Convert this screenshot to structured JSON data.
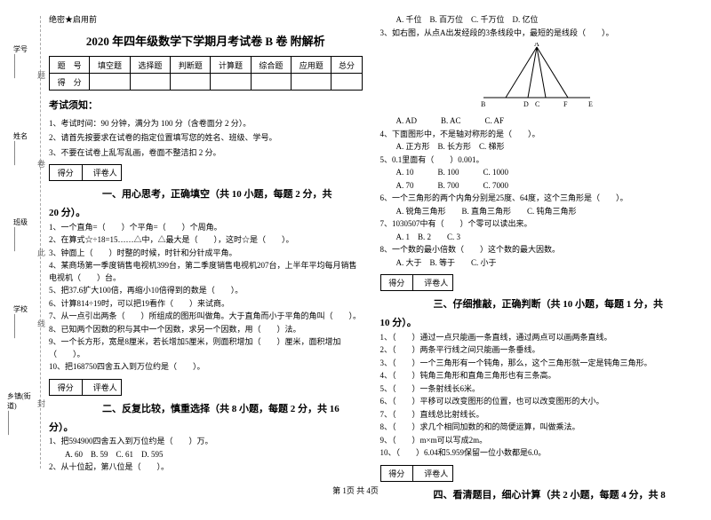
{
  "confidential": "绝密★启用前",
  "title": "2020 年四年级数学下学期月考试卷 B 卷 附解析",
  "scoreTable": {
    "header": [
      "题　号",
      "填空题",
      "选择题",
      "判断题",
      "计算题",
      "综合题",
      "应用题",
      "总分"
    ],
    "row": [
      "得　分",
      "",
      "",
      "",
      "",
      "",
      "",
      ""
    ]
  },
  "noticeTitle": "考试须知：",
  "notices": [
    "1、考试时间：90 分钟，满分为 100 分（含卷面分 2 分）。",
    "2、请首先按要求在试卷的指定位置填写您的姓名、班级、学号。",
    "3、不要在试卷上乱写乱画，卷面不整洁扣 2 分。"
  ],
  "scoreboxLabels": [
    "得分",
    "评卷人"
  ],
  "sec1": "一、用心思考，正确填空（共 10 小题，每题 2 分，共",
  "sec1b": "20 分）。",
  "q1": [
    "1、一个直角=（　　）个平角=（　　）个周角。",
    "2、在算式☆÷18=15……△中，△最大是（　　），这时☆是（　　）。",
    "3、钟面上（　　）时整的时候，时针和分针成平角。",
    "4、某商场第一季度销售电视机399台，第二季度销售电视机207台，上半年平均每月销售电视机（　　）台。",
    "5、把37.6扩大100倍，再缩小10倍得到的数是（　　）。",
    "6、计算814÷19时，可以把19看作（　　）来试商。",
    "7、从一点引出两条（　　）所组成的图形叫做角。大于直角而小于平角的角叫（　　）。",
    "8、已知两个因数的积与其中一个因数，求另一个因数，用（　　）法。",
    "9、一个长方形，宽是8厘米，若长增加5厘米，则面积增加（　　）厘米，面积增加（　　）。",
    "10、把168750四舍五入到万位约是（　　）。"
  ],
  "sec2": "二、反复比较，慎重选择（共 8 小题，每题 2 分，共 16",
  "sec2b": "分）。",
  "q2": [
    "1、把594900四舍五入到万位约是（　　）万。",
    "　　A. 60　B. 59　C. 61　D. 595",
    "2、从十位起，第八位是（　　）。"
  ],
  "q2r": [
    "　　A. 千位　B. 百万位　C. 千万位　D. 亿位",
    "3、如右图，从点A出发经段的3条线段中，最短的是线段（　　）。"
  ],
  "svgLabels": [
    "A",
    "B",
    "D",
    "C",
    "F",
    "E"
  ],
  "q3r": [
    "　　A. AD　　　B. AC　　　C. AF",
    "4、下面图形中，不是轴对称形的是（　　）。",
    "　　A. 正方形　B. 长方形　C. 梯形",
    "5、0.1里面有（　　）0.001。",
    "　　A. 10　　　B. 100　　　C. 1000",
    "　　A. 70　　　B. 700　　　C. 7000",
    "6、一个三角形的两个内角分别是25度、64度，这个三角形是（　　）。",
    "　　A. 锐角三角形　　B. 直角三角形　　C. 钝角三角形",
    "7、1030507中有（　　）个零可以读出来。",
    "　　A. 1　B. 2　　C. 3",
    "8、一个数的最小倍数（　　）这个数的最大因数。",
    "　　A. 大于　B. 等于　　C. 小于"
  ],
  "sec3": "三、仔细推敲，正确判断（共 10 小题，每题 1 分，共",
  "sec3b": "10 分）。",
  "q4": [
    "1、（　　）通过一点只能画一条直线，通过两点可以画两条直线。",
    "2、（　　）两条平行线之间只能画一条垂线。",
    "3、（　　）一个三角形有一个钝角，那么，这个三角形就一定是钝角三角形。",
    "4、（　　）钝角三角形和直角三角形也有三条高。",
    "5、（　　）一条射线长6米。",
    "6、（　　）平移可以改变图形的位置，也可以改变图形的大小。",
    "7、（　　）直线总比射线长。",
    "8、（　　）求几个相同加数的和的简便运算，叫做乘法。",
    "9、（　　）m×m可以写成2m。",
    "10、（　　）6.04和5.959保留一位小数都是6.0。"
  ],
  "sec4": "四、看清题目，细心计算（共 2 小题，每题 4 分，共 8",
  "side": {
    "l1": "乡镇(街道)",
    "b1": "封",
    "l2": "学校",
    "b2": "线",
    "l3": "班级",
    "b3": "此",
    "l4": "姓名",
    "b4": "卷",
    "l5": "学号",
    "b5": "题"
  },
  "footer": "第 1页 共 4页"
}
